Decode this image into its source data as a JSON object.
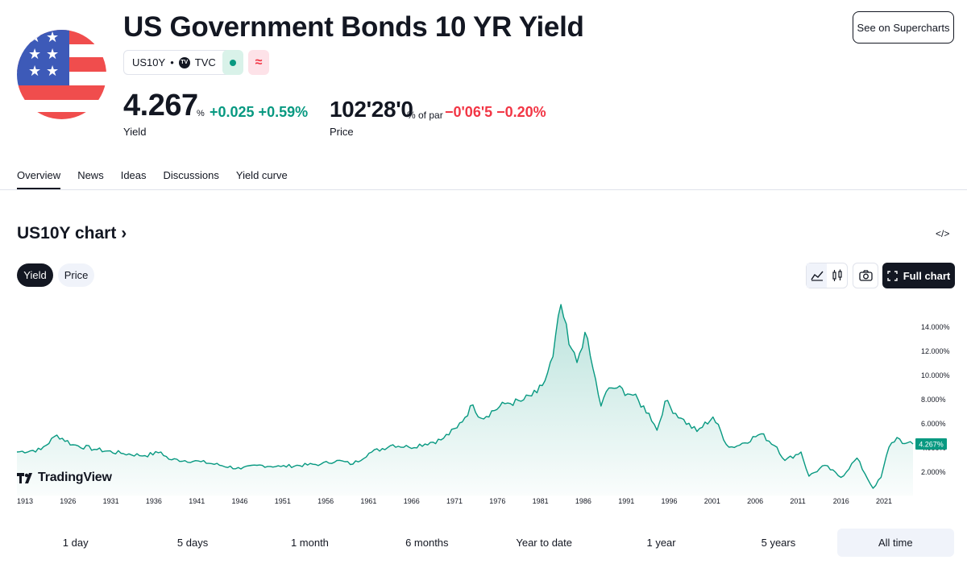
{
  "header": {
    "title": "US Government Bonds 10 YR Yield",
    "see_button": "See on Supercharts",
    "symbol": "US10Y",
    "separator": "•",
    "tv_badge": "TV",
    "exchange": "TVC",
    "pink_badge": "≈"
  },
  "quote": {
    "yield_value": "4.267",
    "yield_unit": "%",
    "yield_change": "+0.025 +0.59%",
    "yield_label": "Yield",
    "price_value": "102'28'0",
    "price_unit": "% of par",
    "price_change": "−0'06'5 −0.20%",
    "price_label": "Price"
  },
  "tabs": [
    {
      "label": "Overview",
      "active": true
    },
    {
      "label": "News",
      "active": false
    },
    {
      "label": "Ideas",
      "active": false
    },
    {
      "label": "Discussions",
      "active": false
    },
    {
      "label": "Yield curve",
      "active": false
    }
  ],
  "chart_section": {
    "title": "US10Y chart",
    "title_arrow": "›",
    "embed_icon": "</>",
    "seg_yield": "Yield",
    "seg_price": "Price",
    "full_chart": "Full chart",
    "brand": "TradingView"
  },
  "ranges": [
    {
      "label": "1 day",
      "active": false
    },
    {
      "label": "5 days",
      "active": false
    },
    {
      "label": "1 month",
      "active": false
    },
    {
      "label": "6 months",
      "active": false
    },
    {
      "label": "Year to date",
      "active": false
    },
    {
      "label": "1 year",
      "active": false
    },
    {
      "label": "5 years",
      "active": false
    },
    {
      "label": "All time",
      "active": true
    }
  ],
  "colors": {
    "up": "#089981",
    "down": "#f23645",
    "line": "#089981"
  },
  "chart_data": {
    "type": "area",
    "x_tick_labels": [
      "1913",
      "1926",
      "1931",
      "1936",
      "1941",
      "1946",
      "1951",
      "1956",
      "1961",
      "1966",
      "1971",
      "1976",
      "1981",
      "1986",
      "1991",
      "1996",
      "2001",
      "2006",
      "2011",
      "2016",
      "2021"
    ],
    "y_tick_labels": [
      "2.000%",
      "4.000%",
      "6.000%",
      "8.000%",
      "10.000%",
      "12.000%",
      "14.000%"
    ],
    "y_ticks": [
      2,
      4,
      6,
      8,
      10,
      12,
      14
    ],
    "ylim": [
      0,
      16
    ],
    "xlim": [
      1913,
      2025
    ],
    "last_value_label": "4.267%",
    "last_value": 4.267,
    "x": [
      1913,
      1916,
      1918,
      1920,
      1923,
      1926,
      1929,
      1931,
      1932,
      1936,
      1941,
      1943,
      1946,
      1951,
      1953,
      1955,
      1957,
      1960,
      1962,
      1966,
      1968,
      1970,
      1971,
      1974,
      1976,
      1978,
      1979,
      1980,
      1981,
      1982,
      1983,
      1984,
      1985,
      1986,
      1987,
      1988,
      1990,
      1992,
      1993,
      1994,
      1996,
      1998,
      2000,
      2002,
      2003,
      2006,
      2008,
      2009,
      2011,
      2012,
      2014,
      2016,
      2018,
      2019,
      2020,
      2021,
      2022,
      2023,
      2024,
      2025
    ],
    "y": [
      3.6,
      3.8,
      5.0,
      4.2,
      3.8,
      3.5,
      3.3,
      3.6,
      3.0,
      2.8,
      2.2,
      2.5,
      2.4,
      2.6,
      2.9,
      2.6,
      3.5,
      4.2,
      4.0,
      4.6,
      5.6,
      7.5,
      6.4,
      7.6,
      7.8,
      8.5,
      9.5,
      11.5,
      15.8,
      12.5,
      11.0,
      13.5,
      10.5,
      7.4,
      8.9,
      8.9,
      8.3,
      6.8,
      5.4,
      7.8,
      6.4,
      5.3,
      6.5,
      4.0,
      4.1,
      5.1,
      4.0,
      2.9,
      3.6,
      1.6,
      2.5,
      1.5,
      3.1,
      1.8,
      0.6,
      1.5,
      4.0,
      4.8,
      4.3,
      4.267
    ]
  }
}
